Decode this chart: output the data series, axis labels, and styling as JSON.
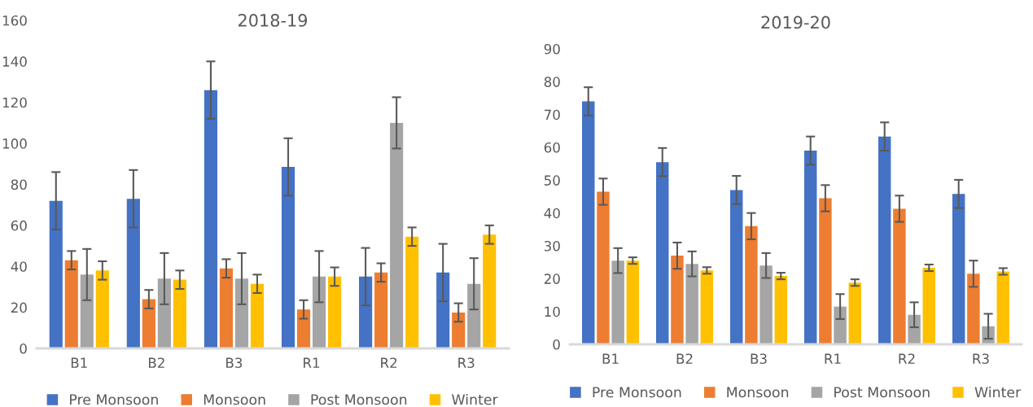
{
  "chart_data": [
    {
      "type": "bar",
      "title": "2018-19",
      "categories": [
        "B1",
        "B2",
        "B3",
        "R1",
        "R2",
        "R3"
      ],
      "ylim": [
        0,
        160
      ],
      "yticks": [
        0,
        20,
        40,
        60,
        80,
        100,
        120,
        140,
        160
      ],
      "grid": false,
      "legend": "bottom",
      "series": [
        {
          "name": "Pre Monsoon",
          "color": "#4472c4",
          "values": [
            72,
            73,
            126,
            88.5,
            35,
            37
          ],
          "errors": [
            14,
            14,
            14,
            14,
            14,
            14
          ]
        },
        {
          "name": "Monsoon",
          "color": "#ed7d31",
          "values": [
            43,
            24,
            39,
            19,
            37,
            17.5
          ],
          "errors": [
            4.5,
            4.5,
            4.5,
            4.5,
            4.5,
            4.5
          ]
        },
        {
          "name": "Post Monsoon",
          "color": "#a5a5a5",
          "values": [
            36,
            34,
            34,
            35,
            110,
            31.5
          ],
          "errors": [
            12.5,
            12.5,
            12.5,
            12.5,
            12.5,
            12.5
          ]
        },
        {
          "name": "Winter",
          "color": "#ffc000",
          "values": [
            38,
            33.5,
            31.5,
            35,
            54.5,
            55.5
          ],
          "errors": [
            4.5,
            4.5,
            4.5,
            4.5,
            4.5,
            4.5
          ]
        }
      ]
    },
    {
      "type": "bar",
      "title": "2019-20",
      "categories": [
        "B1",
        "B2",
        "B3",
        "R1",
        "R2",
        "R3"
      ],
      "ylim": [
        0,
        90
      ],
      "yticks": [
        0,
        10,
        20,
        30,
        40,
        50,
        60,
        70,
        80,
        90
      ],
      "grid": false,
      "legend": "bottom",
      "series": [
        {
          "name": "Pre Monsoon",
          "color": "#4472c4",
          "values": [
            74,
            55.5,
            47,
            59,
            63.3,
            45.8
          ],
          "errors": [
            4.3,
            4.3,
            4.3,
            4.3,
            4.3,
            4.3
          ]
        },
        {
          "name": "Monsoon",
          "color": "#ed7d31",
          "values": [
            46.5,
            27,
            36,
            44.5,
            41.3,
            21.5
          ],
          "errors": [
            4,
            4,
            4,
            4,
            4,
            4
          ]
        },
        {
          "name": "Post Monsoon",
          "color": "#a5a5a5",
          "values": [
            25.5,
            24.5,
            24,
            11.5,
            9,
            5.5
          ],
          "errors": [
            3.8,
            3.8,
            3.8,
            3.8,
            3.8,
            3.8
          ]
        },
        {
          "name": "Winter",
          "color": "#ffc000",
          "values": [
            25.5,
            22.5,
            20.8,
            18.8,
            23.3,
            22.2
          ],
          "errors": [
            1,
            1,
            1,
            1,
            1,
            1
          ]
        }
      ]
    }
  ]
}
